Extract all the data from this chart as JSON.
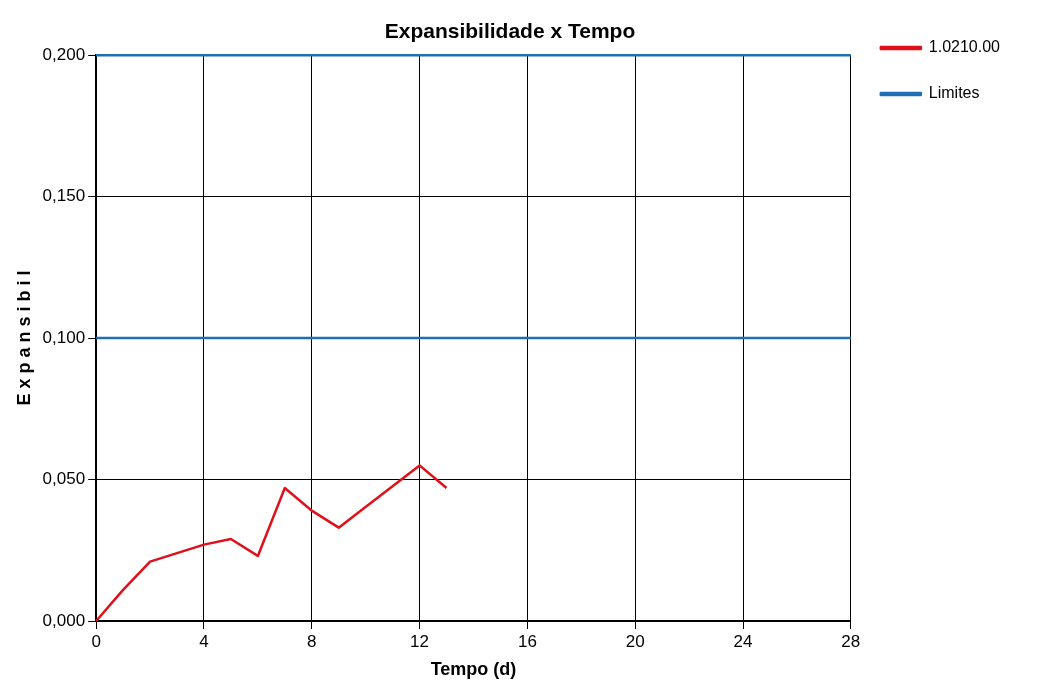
{
  "chart_data": {
    "type": "line",
    "title": "Expansibilidade x Tempo",
    "xlabel": "Tempo (d)",
    "ylabel": "E x p a n s i b i l",
    "series": [
      {
        "name": "1.0210.00",
        "color": "#e0101a",
        "x": [
          0,
          1,
          2,
          4,
          5,
          6,
          7,
          8,
          9,
          12,
          13
        ],
        "values": [
          0,
          0.011,
          0.021,
          0.027,
          0.029,
          0.023,
          0.047,
          0.039,
          0.033,
          0.055,
          0.047
        ]
      },
      {
        "name": "Limites",
        "color": "#1f6fb4",
        "x": [
          0,
          28
        ],
        "values": [
          0.2,
          0.2
        ]
      },
      {
        "color": "#1f6fb4",
        "x": [
          0,
          28
        ],
        "values": [
          0.1,
          0.1
        ]
      }
    ],
    "xlim": [
      0,
      28
    ],
    "xticks": [
      0,
      4,
      8,
      12,
      16,
      20,
      24,
      28
    ],
    "ylim": [
      0,
      0.2
    ],
    "yticks": [
      {
        "value": 0,
        "label": "0,000"
      },
      {
        "value": 0.05,
        "label": "0,050"
      },
      {
        "value": 0.1,
        "label": "0,100"
      },
      {
        "value": 0.15,
        "label": "0,150"
      },
      {
        "value": 0.2,
        "label": "0,200"
      }
    ],
    "grid": true,
    "legend": "top right",
    "marker": "none",
    "line_style": "solid"
  }
}
